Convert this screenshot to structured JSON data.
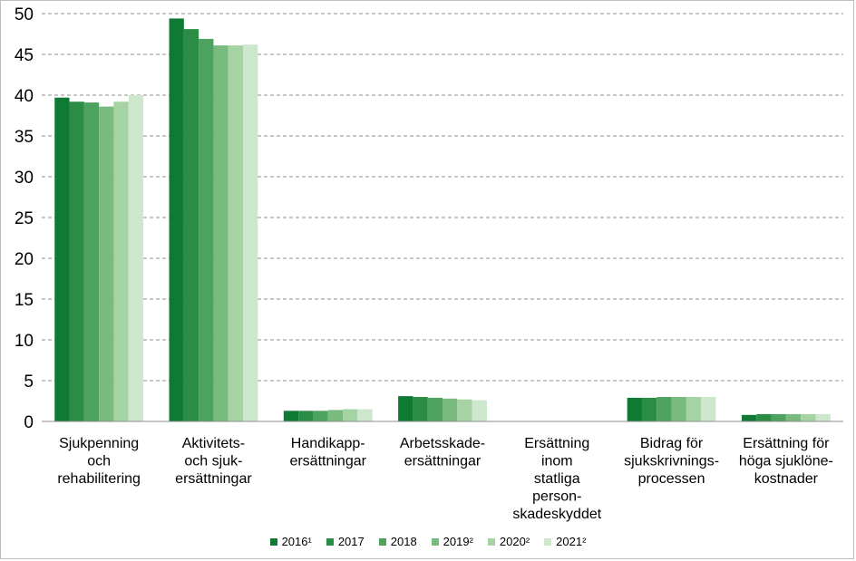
{
  "chart_data": {
    "type": "bar",
    "categories": [
      [
        "Sjukpenning",
        "och",
        "rehabilitering"
      ],
      [
        "Aktivitets-",
        "och sjuk-",
        "ersättningar"
      ],
      [
        "Handikapp-",
        "ersättningar"
      ],
      [
        "Arbetsskade-",
        "ersättningar"
      ],
      [
        "Ersättning",
        "inom",
        "statliga",
        "person-",
        "skadeskyddet"
      ],
      [
        "Bidrag för",
        "sjukskrivnings-",
        "processen"
      ],
      [
        "Ersättning för",
        "höga sjuklöne-",
        "kostnader"
      ]
    ],
    "series": [
      {
        "name": "2016¹",
        "color": "#0e7a34",
        "values": [
          39.7,
          49.4,
          1.3,
          3.1,
          0.0,
          2.9,
          0.8
        ]
      },
      {
        "name": "2017",
        "color": "#2a8c45",
        "values": [
          39.2,
          48.1,
          1.3,
          3.0,
          0.0,
          2.9,
          0.9
        ]
      },
      {
        "name": "2018",
        "color": "#4ca25e",
        "values": [
          39.1,
          46.9,
          1.3,
          2.9,
          0.0,
          3.0,
          0.9
        ]
      },
      {
        "name": "2019²",
        "color": "#79bb7f",
        "values": [
          38.6,
          46.1,
          1.4,
          2.8,
          0.0,
          3.0,
          0.9
        ]
      },
      {
        "name": "2020²",
        "color": "#a6d3a4",
        "values": [
          39.2,
          46.1,
          1.5,
          2.7,
          0.0,
          3.0,
          0.9
        ]
      },
      {
        "name": "2021²",
        "color": "#cce7cb",
        "values": [
          40.0,
          46.2,
          1.5,
          2.6,
          0.0,
          3.0,
          0.9
        ]
      }
    ],
    "yticks": [
      0,
      5,
      10,
      15,
      20,
      25,
      30,
      35,
      40,
      45,
      50
    ],
    "ylim": [
      0,
      50
    ],
    "grid": true,
    "legend_position": "bottom"
  }
}
